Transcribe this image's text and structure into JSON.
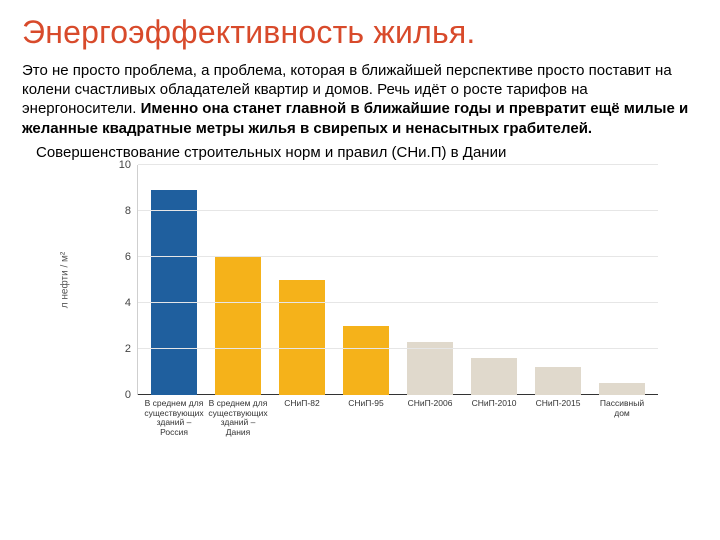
{
  "title": "Энергоэффективность жилья.",
  "paragraph_plain": "Это не просто проблема, а проблема, которая в ближайшей перспективе просто поставит на колени счастливых обладателей квартир и домов.  Речь идёт о росте тарифов на энергоносители. ",
  "paragraph_bold": "Именно она станет главной в ближайшие годы и превратит ещё милые и желанные  квадратные метры жилья в свирепых и ненасытных грабителей.",
  "subtitle": "Совершенствование строительных норм и правил (СНи.П) в Дании",
  "chart": {
    "type": "bar",
    "y_label": "л нефти / м²",
    "ylim": [
      0,
      10
    ],
    "ytick_step": 2,
    "yticks": [
      0,
      2,
      4,
      6,
      8,
      10
    ],
    "grid_color": "#e6e6e6",
    "axis_color": "#333333",
    "tick_fontsize": 11,
    "xlabel_fontsize": 8.5,
    "background_color": "#ffffff",
    "bar_width": 0.72,
    "categories": [
      "В среднем для существующих зданий – Россия",
      "В среднем для существующих зданий – Дания",
      "СНиП-82",
      "СНиП-95",
      "СНиП-2006",
      "СНиП-2010",
      "СНиП-2015",
      "Пассивный дом"
    ],
    "values": [
      8.9,
      6.0,
      5.0,
      3.0,
      2.3,
      1.6,
      1.2,
      0.5
    ],
    "bar_colors": [
      "#1f5f9e",
      "#f5b21a",
      "#f5b21a",
      "#f5b21a",
      "#e0d9cc",
      "#e0d9cc",
      "#e0d9cc",
      "#e0d9cc"
    ]
  },
  "colors": {
    "title": "#d84a2b",
    "text": "#000000"
  }
}
